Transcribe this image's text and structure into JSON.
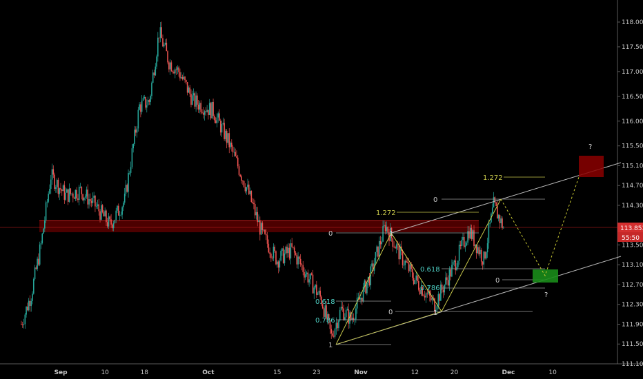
{
  "chart_data": {
    "type": "candlestick",
    "colors": {
      "background": "#000000",
      "up": "#26a69a",
      "down": "#ef5350",
      "zone_red": "#8b0000",
      "zone_green": "#1a8c1a",
      "trendline": "#bdbdbd",
      "fib_line": "#9e9e9e",
      "fib_gold": "#c8c84a",
      "fib_cyan": "#4fd1c5",
      "current_price_bg": "#d32f2f",
      "countdown_bg": "#c62828",
      "axis_text": "#c8c8c8",
      "dashed_projection": "#c8c832"
    },
    "y_axis": {
      "range": [
        111.1,
        118.4
      ],
      "ticks": [
        "118.000",
        "117.500",
        "117.000",
        "116.500",
        "116.000",
        "115.500",
        "115.100",
        "114.700",
        "114.300",
        "113.900",
        "113.500",
        "113.100",
        "112.700",
        "112.300",
        "111.900",
        "111.500",
        "111.100"
      ],
      "current_price": "113.853",
      "countdown": "55:50"
    },
    "x_axis": {
      "ticks": [
        "Sep",
        "10",
        "18",
        "Oct",
        "15",
        "23",
        "Nov",
        "12",
        "20",
        "Dec",
        "10"
      ]
    },
    "keypoints": [
      [
        "Aug 24",
        111.9
      ],
      [
        "Aug 26",
        112.5
      ],
      [
        "Aug 28",
        113.5
      ],
      [
        "Aug 30",
        114.9
      ],
      [
        "Sep 2",
        114.5
      ],
      [
        "Sep 5",
        114.6
      ],
      [
        "Sep 8",
        114.3
      ],
      [
        "Sep 11",
        113.9
      ],
      [
        "Sep 14",
        114.4
      ],
      [
        "Sep 17",
        116.3
      ],
      [
        "Sep 19",
        116.4
      ],
      [
        "Sep 21",
        117.8
      ],
      [
        "Sep 23",
        117.2
      ],
      [
        "Sep 25",
        117.0
      ],
      [
        "Sep 28",
        116.4
      ],
      [
        "Oct 2",
        116.2
      ],
      [
        "Oct 5",
        115.6
      ],
      [
        "Oct 9",
        114.6
      ],
      [
        "Oct 12",
        113.7
      ],
      [
        "Oct 15",
        113.2
      ],
      [
        "Oct 18",
        113.4
      ],
      [
        "Oct 21",
        112.9
      ],
      [
        "Oct 24",
        112.4
      ],
      [
        "Oct 26",
        111.65
      ],
      [
        "Oct 28",
        112.2
      ],
      [
        "Oct 30",
        112.0
      ],
      [
        "Nov 3",
        112.9
      ],
      [
        "Nov 6",
        113.9
      ],
      [
        "Nov 9",
        113.3
      ],
      [
        "Nov 12",
        112.8
      ],
      [
        "Nov 16",
        112.3
      ],
      [
        "Nov 20",
        113.1
      ],
      [
        "Nov 23",
        113.8
      ],
      [
        "Nov 26",
        113.2
      ],
      [
        "Nov 28",
        114.3
      ],
      [
        "Nov 30",
        113.85
      ]
    ],
    "annotations": {
      "fib_labels": [
        "1.272",
        "1.272",
        "0",
        "0",
        "0",
        "0",
        "1",
        "1",
        "1",
        "0.618",
        "0.618",
        "0.786",
        "0.786"
      ],
      "question_marks": [
        "?",
        "?"
      ]
    }
  }
}
